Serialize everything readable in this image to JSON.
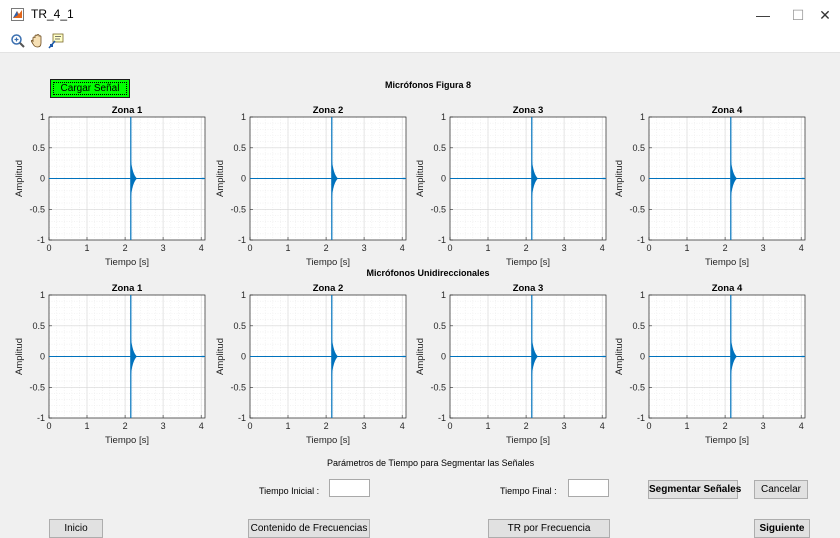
{
  "window": {
    "title": "TR_4_1",
    "minimize": "—",
    "maximize": "☐",
    "close": "✕"
  },
  "toolbar": [
    {
      "name": "zoom-in-icon"
    },
    {
      "name": "pan-hand-icon"
    },
    {
      "name": "data-cursor-icon"
    }
  ],
  "load_button": "Cargar Señal",
  "sections": {
    "top": "Micrófonos Figura 8",
    "bottom": "Micrófonos Unidireccionales",
    "params": "Parámetros de Tiempo para Segmentar las Señales"
  },
  "params": {
    "start_label": "Tiempo Inicial :",
    "start_value": "",
    "end_label": "Tiempo Final :",
    "end_value": ""
  },
  "buttons": {
    "segment": "Segmentar Señales",
    "cancel": "Cancelar",
    "home": "Inicio",
    "freq_content": "Contenido de Frecuencias",
    "tr_freq": "TR por Frecuencia",
    "next": "Siguiente"
  },
  "colors": {
    "signal": "#0072bd",
    "load_button": "#00ff00"
  },
  "chart_data": [
    {
      "type": "line",
      "group": "Micrófonos Figura 8",
      "title": "Zona 1",
      "xlabel": "Tiempo [s]",
      "ylabel": "Amplitud",
      "xlim": [
        0,
        4.1
      ],
      "ylim": [
        -1,
        1
      ],
      "xticks": [
        "0",
        "1",
        "2",
        "3",
        "4"
      ],
      "yticks": [
        "-1",
        "-0.5",
        "0",
        "0.5",
        "1"
      ],
      "grid": true,
      "impulse_time": 2.15,
      "impulse_peak": 1,
      "tail_amplitude": 0.28,
      "decay_end": 2.3,
      "baseline": 0
    },
    {
      "type": "line",
      "group": "Micrófonos Figura 8",
      "title": "Zona 2",
      "xlabel": "Tiempo [s]",
      "ylabel": "Amplitud",
      "xlim": [
        0,
        4.1
      ],
      "ylim": [
        -1,
        1
      ],
      "xticks": [
        "0",
        "1",
        "2",
        "3",
        "4"
      ],
      "yticks": [
        "-1",
        "-0.5",
        "0",
        "0.5",
        "1"
      ],
      "grid": true,
      "impulse_time": 2.15,
      "impulse_peak": 1,
      "tail_amplitude": 0.28,
      "decay_end": 2.3,
      "baseline": 0
    },
    {
      "type": "line",
      "group": "Micrófonos Figura 8",
      "title": "Zona 3",
      "xlabel": "Tiempo [s]",
      "ylabel": "Amplitud",
      "xlim": [
        0,
        4.1
      ],
      "ylim": [
        -1,
        1
      ],
      "xticks": [
        "0",
        "1",
        "2",
        "3",
        "4"
      ],
      "yticks": [
        "-1",
        "-0.5",
        "0",
        "0.5",
        "1"
      ],
      "grid": true,
      "impulse_time": 2.15,
      "impulse_peak": 1,
      "tail_amplitude": 0.28,
      "decay_end": 2.3,
      "baseline": 0
    },
    {
      "type": "line",
      "group": "Micrófonos Figura 8",
      "title": "Zona 4",
      "xlabel": "Tiempo [s]",
      "ylabel": "Amplitud",
      "xlim": [
        0,
        4.1
      ],
      "ylim": [
        -1,
        1
      ],
      "xticks": [
        "0",
        "1",
        "2",
        "3",
        "4"
      ],
      "yticks": [
        "-1",
        "-0.5",
        "0",
        "0.5",
        "1"
      ],
      "grid": true,
      "impulse_time": 2.15,
      "impulse_peak": 1,
      "tail_amplitude": 0.28,
      "decay_end": 2.3,
      "baseline": 0
    },
    {
      "type": "line",
      "group": "Micrófonos Unidireccionales",
      "title": "Zona 1",
      "xlabel": "Tiempo [s]",
      "ylabel": "Amplitud",
      "xlim": [
        0,
        4.1
      ],
      "ylim": [
        -1,
        1
      ],
      "xticks": [
        "0",
        "1",
        "2",
        "3",
        "4"
      ],
      "yticks": [
        "-1",
        "-0.5",
        "0",
        "0.5",
        "1"
      ],
      "grid": true,
      "impulse_time": 2.15,
      "impulse_peak": 1,
      "tail_amplitude": 0.28,
      "decay_end": 2.3,
      "baseline": 0
    },
    {
      "type": "line",
      "group": "Micrófonos Unidireccionales",
      "title": "Zona 2",
      "xlabel": "Tiempo [s]",
      "ylabel": "Amplitud",
      "xlim": [
        0,
        4.1
      ],
      "ylim": [
        -1,
        1
      ],
      "xticks": [
        "0",
        "1",
        "2",
        "3",
        "4"
      ],
      "yticks": [
        "-1",
        "-0.5",
        "0",
        "0.5",
        "1"
      ],
      "grid": true,
      "impulse_time": 2.15,
      "impulse_peak": 1,
      "tail_amplitude": 0.28,
      "decay_end": 2.3,
      "baseline": 0
    },
    {
      "type": "line",
      "group": "Micrófonos Unidireccionales",
      "title": "Zona 3",
      "xlabel": "Tiempo [s]",
      "ylabel": "Amplitud",
      "xlim": [
        0,
        4.1
      ],
      "ylim": [
        -1,
        1
      ],
      "xticks": [
        "0",
        "1",
        "2",
        "3",
        "4"
      ],
      "yticks": [
        "-1",
        "-0.5",
        "0",
        "0.5",
        "1"
      ],
      "grid": true,
      "impulse_time": 2.15,
      "impulse_peak": 1,
      "tail_amplitude": 0.28,
      "decay_end": 2.3,
      "baseline": 0
    },
    {
      "type": "line",
      "group": "Micrófonos Unidireccionales",
      "title": "Zona 4",
      "xlabel": "Tiempo [s]",
      "ylabel": "Amplitud",
      "xlim": [
        0,
        4.1
      ],
      "ylim": [
        -1,
        1
      ],
      "xticks": [
        "0",
        "1",
        "2",
        "3",
        "4"
      ],
      "yticks": [
        "-1",
        "-0.5",
        "0",
        "0.5",
        "1"
      ],
      "grid": true,
      "impulse_time": 2.15,
      "impulse_peak": 1,
      "tail_amplitude": 0.28,
      "decay_end": 2.3,
      "baseline": 0
    }
  ]
}
